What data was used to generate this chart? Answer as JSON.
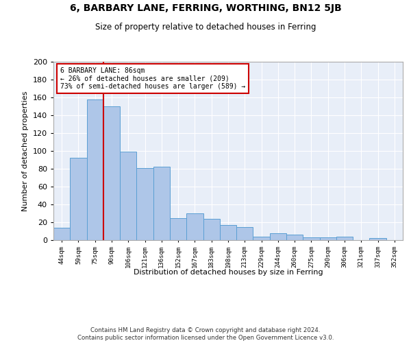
{
  "title": "6, BARBARY LANE, FERRING, WORTHING, BN12 5JB",
  "subtitle": "Size of property relative to detached houses in Ferring",
  "xlabel": "Distribution of detached houses by size in Ferring",
  "ylabel": "Number of detached properties",
  "categories": [
    "44sqm",
    "59sqm",
    "75sqm",
    "90sqm",
    "106sqm",
    "121sqm",
    "136sqm",
    "152sqm",
    "167sqm",
    "183sqm",
    "198sqm",
    "213sqm",
    "229sqm",
    "244sqm",
    "260sqm",
    "275sqm",
    "290sqm",
    "306sqm",
    "321sqm",
    "337sqm",
    "352sqm"
  ],
  "values": [
    14,
    92,
    158,
    150,
    99,
    81,
    82,
    25,
    30,
    24,
    17,
    15,
    4,
    8,
    6,
    3,
    3,
    4,
    0,
    2,
    0
  ],
  "bar_color": "#aec6e8",
  "bar_edge_color": "#5a9fd4",
  "background_color": "#e8eef8",
  "vline_x_index": 2.5,
  "vline_color": "#cc0000",
  "annotation_text": "6 BARBARY LANE: 86sqm\n← 26% of detached houses are smaller (209)\n73% of semi-detached houses are larger (589) →",
  "annotation_box_color": "white",
  "annotation_box_edge": "#cc0000",
  "footer": "Contains HM Land Registry data © Crown copyright and database right 2024.\nContains public sector information licensed under the Open Government Licence v3.0.",
  "ylim": [
    0,
    200
  ],
  "yticks": [
    0,
    20,
    40,
    60,
    80,
    100,
    120,
    140,
    160,
    180,
    200
  ]
}
